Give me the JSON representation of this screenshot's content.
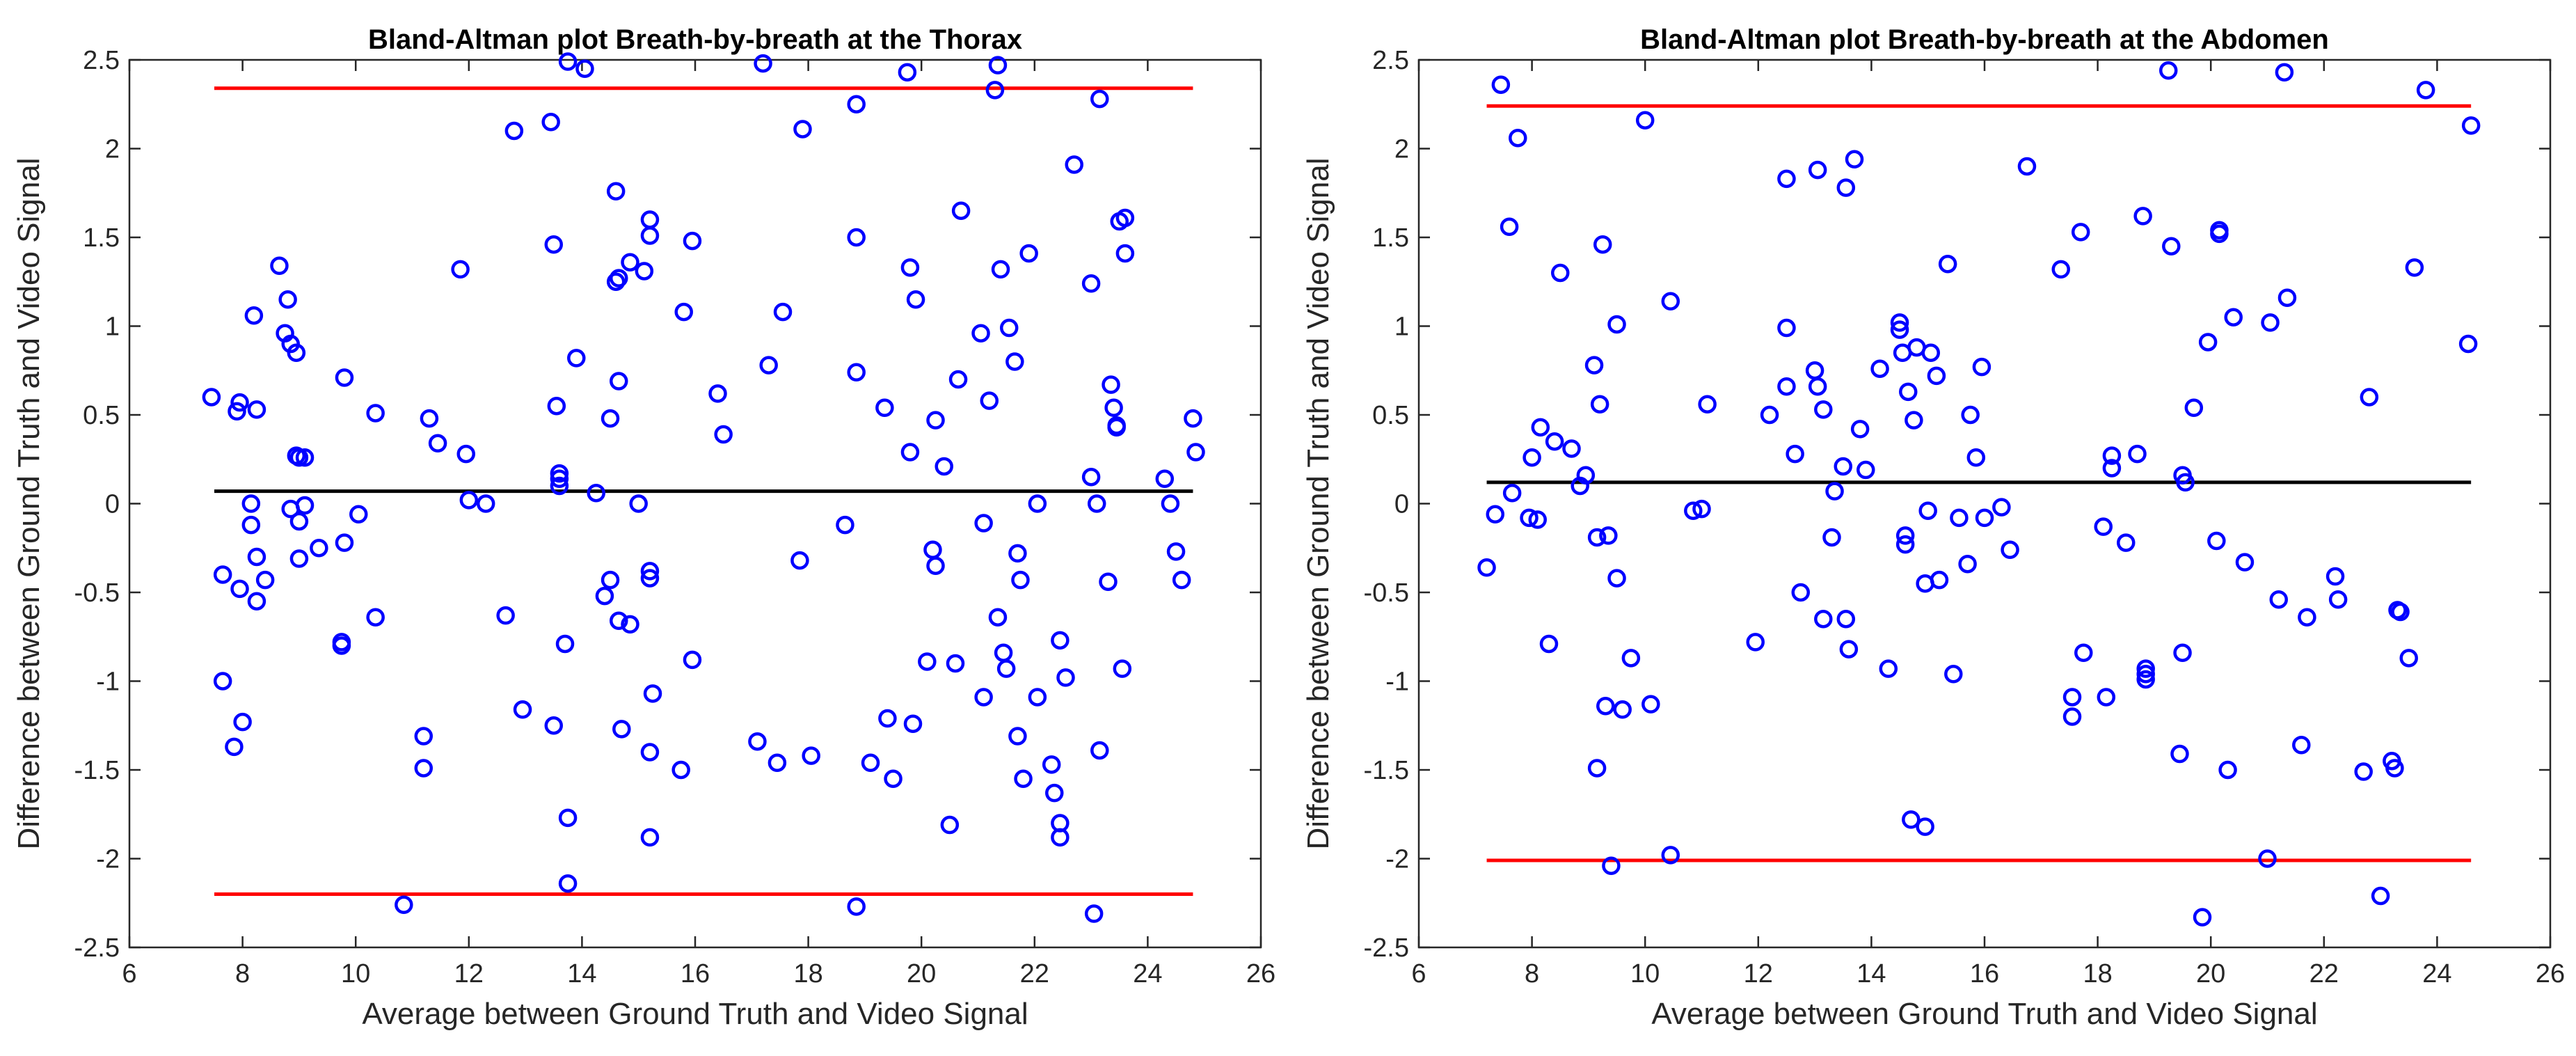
{
  "chart_data": [
    {
      "type": "scatter",
      "title": "Bland-Altman plot Breath-by-breath at the Thorax",
      "xlabel": "Average between Ground Truth and Video Signal",
      "ylabel": "Difference between Ground Truth and Video Signal",
      "xlim": [
        6,
        26
      ],
      "ylim": [
        -2.5,
        2.5
      ],
      "xticks": [
        6,
        8,
        10,
        12,
        14,
        16,
        18,
        20,
        22,
        24,
        26
      ],
      "xtick_labels": [
        "6",
        "8",
        "10",
        "12",
        "14",
        "16",
        "18",
        "20",
        "22",
        "24",
        "26"
      ],
      "yticks": [
        -2.5,
        -2,
        -1.5,
        -1,
        -0.5,
        0,
        0.5,
        1,
        1.5,
        2,
        2.5
      ],
      "ytick_labels": [
        "-2.5",
        "-2",
        "-1.5",
        "-1",
        "-0.5",
        "0",
        "0.5",
        "1",
        "1.5",
        "2",
        "2.5"
      ],
      "marker": "o",
      "marker_color": "#0000ff",
      "lines": [
        {
          "name": "upper-loa",
          "y": 2.34,
          "x": [
            7.5,
            24.8
          ],
          "color": "#ff0000"
        },
        {
          "name": "mean-diff",
          "y": 0.07,
          "x": [
            7.5,
            24.8
          ],
          "color": "#000000"
        },
        {
          "name": "lower-loa",
          "y": -2.2,
          "x": [
            7.5,
            24.8
          ],
          "color": "#ff0000"
        }
      ],
      "points": [
        [
          7.45,
          0.6
        ],
        [
          7.65,
          -0.4
        ],
        [
          7.65,
          -1.0
        ],
        [
          7.85,
          -1.37
        ],
        [
          7.9,
          0.52
        ],
        [
          7.95,
          0.57
        ],
        [
          7.95,
          -0.48
        ],
        [
          8.0,
          -1.23
        ],
        [
          8.15,
          0.0
        ],
        [
          8.15,
          -0.12
        ],
        [
          8.2,
          1.06
        ],
        [
          8.25,
          0.53
        ],
        [
          8.25,
          -0.3
        ],
        [
          8.25,
          -0.55
        ],
        [
          8.4,
          -0.43
        ],
        [
          8.65,
          1.34
        ],
        [
          8.75,
          0.96
        ],
        [
          8.8,
          1.15
        ],
        [
          8.85,
          0.9
        ],
        [
          8.85,
          -0.03
        ],
        [
          8.95,
          0.85
        ],
        [
          8.95,
          0.27
        ],
        [
          9.0,
          0.26
        ],
        [
          9.0,
          -0.1
        ],
        [
          9.0,
          -0.31
        ],
        [
          9.1,
          0.26
        ],
        [
          9.1,
          -0.01
        ],
        [
          9.35,
          -0.25
        ],
        [
          9.75,
          -0.78
        ],
        [
          9.75,
          -0.8
        ],
        [
          9.8,
          0.71
        ],
        [
          9.8,
          -0.22
        ],
        [
          10.05,
          -0.06
        ],
        [
          10.35,
          0.51
        ],
        [
          10.35,
          -0.64
        ],
        [
          10.85,
          -2.26
        ],
        [
          11.2,
          -1.31
        ],
        [
          11.2,
          -1.49
        ],
        [
          11.3,
          0.48
        ],
        [
          11.45,
          0.34
        ],
        [
          11.85,
          1.32
        ],
        [
          11.95,
          0.28
        ],
        [
          12.0,
          0.02
        ],
        [
          12.3,
          0.0
        ],
        [
          12.65,
          -0.63
        ],
        [
          12.8,
          2.1
        ],
        [
          12.95,
          -1.16
        ],
        [
          13.45,
          2.15
        ],
        [
          13.5,
          1.46
        ],
        [
          13.5,
          -1.25
        ],
        [
          13.55,
          0.55
        ],
        [
          13.6,
          0.17
        ],
        [
          13.6,
          0.14
        ],
        [
          13.6,
          0.1
        ],
        [
          13.7,
          -0.79
        ],
        [
          13.75,
          -1.77
        ],
        [
          13.75,
          -2.14
        ],
        [
          13.75,
          2.49
        ],
        [
          13.9,
          0.82
        ],
        [
          14.05,
          2.45
        ],
        [
          14.25,
          0.06
        ],
        [
          14.4,
          -0.52
        ],
        [
          14.5,
          -0.43
        ],
        [
          14.5,
          0.48
        ],
        [
          14.6,
          1.76
        ],
        [
          14.6,
          1.25
        ],
        [
          14.65,
          1.27
        ],
        [
          14.65,
          0.69
        ],
        [
          14.65,
          -0.66
        ],
        [
          14.7,
          -1.27
        ],
        [
          14.85,
          1.36
        ],
        [
          14.85,
          -0.68
        ],
        [
          15.0,
          0.0
        ],
        [
          15.1,
          1.31
        ],
        [
          15.2,
          1.6
        ],
        [
          15.2,
          1.51
        ],
        [
          15.2,
          -0.38
        ],
        [
          15.2,
          -0.42
        ],
        [
          15.2,
          -1.4
        ],
        [
          15.25,
          -1.07
        ],
        [
          15.2,
          -1.88
        ],
        [
          15.75,
          -1.5
        ],
        [
          15.8,
          1.08
        ],
        [
          15.95,
          1.48
        ],
        [
          15.95,
          -0.88
        ],
        [
          16.4,
          0.62
        ],
        [
          16.5,
          0.39
        ],
        [
          17.1,
          -1.34
        ],
        [
          17.2,
          2.48
        ],
        [
          17.3,
          0.78
        ],
        [
          17.45,
          -1.46
        ],
        [
          17.55,
          1.08
        ],
        [
          17.85,
          -0.32
        ],
        [
          17.9,
          2.11
        ],
        [
          18.05,
          -1.42
        ],
        [
          18.65,
          -0.12
        ],
        [
          18.85,
          1.5
        ],
        [
          18.85,
          0.74
        ],
        [
          18.85,
          -2.27
        ],
        [
          18.85,
          2.25
        ],
        [
          19.1,
          -1.46
        ],
        [
          19.35,
          0.54
        ],
        [
          19.4,
          -1.21
        ],
        [
          19.5,
          -1.55
        ],
        [
          19.75,
          2.43
        ],
        [
          19.8,
          1.33
        ],
        [
          19.8,
          0.29
        ],
        [
          19.85,
          -1.24
        ],
        [
          19.9,
          1.15
        ],
        [
          20.1,
          -0.89
        ],
        [
          20.2,
          -0.26
        ],
        [
          20.25,
          0.47
        ],
        [
          20.25,
          -0.35
        ],
        [
          20.4,
          0.21
        ],
        [
          20.5,
          -1.81
        ],
        [
          20.6,
          -0.9
        ],
        [
          20.65,
          0.7
        ],
        [
          20.7,
          1.65
        ],
        [
          21.05,
          0.96
        ],
        [
          21.1,
          -0.11
        ],
        [
          21.1,
          -1.09
        ],
        [
          21.2,
          0.58
        ],
        [
          21.3,
          2.33
        ],
        [
          21.35,
          2.47
        ],
        [
          21.35,
          -0.64
        ],
        [
          21.4,
          1.32
        ],
        [
          21.45,
          -0.84
        ],
        [
          21.5,
          -0.93
        ],
        [
          21.55,
          0.99
        ],
        [
          21.65,
          0.8
        ],
        [
          21.7,
          -0.28
        ],
        [
          21.7,
          -1.31
        ],
        [
          21.75,
          -0.43
        ],
        [
          21.8,
          -1.55
        ],
        [
          21.9,
          1.41
        ],
        [
          22.05,
          0.0
        ],
        [
          22.05,
          -1.09
        ],
        [
          22.3,
          -1.47
        ],
        [
          22.35,
          -1.63
        ],
        [
          22.45,
          -0.77
        ],
        [
          22.45,
          -1.8
        ],
        [
          22.45,
          -1.88
        ],
        [
          22.55,
          -0.98
        ],
        [
          22.7,
          1.91
        ],
        [
          23.0,
          1.24
        ],
        [
          23.0,
          0.15
        ],
        [
          23.05,
          -2.31
        ],
        [
          23.1,
          0.0
        ],
        [
          23.15,
          2.28
        ],
        [
          23.15,
          -1.39
        ],
        [
          23.3,
          -0.44
        ],
        [
          23.35,
          0.67
        ],
        [
          23.4,
          0.54
        ],
        [
          23.45,
          0.43
        ],
        [
          23.45,
          0.44
        ],
        [
          23.5,
          1.59
        ],
        [
          23.55,
          -0.93
        ],
        [
          23.6,
          1.61
        ],
        [
          23.6,
          1.41
        ],
        [
          24.3,
          0.14
        ],
        [
          24.4,
          0.0
        ],
        [
          24.5,
          -0.27
        ],
        [
          24.6,
          -0.43
        ],
        [
          24.8,
          0.48
        ],
        [
          24.85,
          0.29
        ]
      ]
    },
    {
      "type": "scatter",
      "title": "Bland-Altman plot Breath-by-breath at the Abdomen",
      "xlabel": "Average between Ground Truth and Video Signal",
      "ylabel": "Difference between Ground Truth and Video Signal",
      "xlim": [
        6,
        26
      ],
      "ylim": [
        -2.5,
        2.5
      ],
      "xticks": [
        6,
        8,
        10,
        12,
        14,
        16,
        18,
        20,
        22,
        24,
        26
      ],
      "xtick_labels": [
        "6",
        "8",
        "10",
        "12",
        "14",
        "16",
        "18",
        "20",
        "22",
        "24",
        "26"
      ],
      "yticks": [
        -2.5,
        -2,
        -1.5,
        -1,
        -0.5,
        0,
        0.5,
        1,
        1.5,
        2,
        2.5
      ],
      "ytick_labels": [
        "-2.5",
        "-2",
        "-1.5",
        "-1",
        "-0.5",
        "0",
        "0.5",
        "1",
        "1.5",
        "2",
        "2.5"
      ],
      "marker": "o",
      "marker_color": "#0000ff",
      "lines": [
        {
          "name": "upper-loa",
          "y": 2.24,
          "x": [
            7.2,
            24.6
          ],
          "color": "#ff0000"
        },
        {
          "name": "mean-diff",
          "y": 0.12,
          "x": [
            7.2,
            24.6
          ],
          "color": "#000000"
        },
        {
          "name": "lower-loa",
          "y": -2.01,
          "x": [
            7.2,
            24.6
          ],
          "color": "#ff0000"
        }
      ],
      "points": [
        [
          7.2,
          -0.36
        ],
        [
          7.35,
          -0.06
        ],
        [
          7.45,
          2.36
        ],
        [
          7.6,
          1.56
        ],
        [
          7.65,
          0.06
        ],
        [
          7.75,
          2.06
        ],
        [
          7.95,
          -0.08
        ],
        [
          8.0,
          0.26
        ],
        [
          8.1,
          -0.09
        ],
        [
          8.15,
          0.43
        ],
        [
          8.3,
          -0.79
        ],
        [
          8.4,
          0.35
        ],
        [
          8.5,
          1.3
        ],
        [
          8.7,
          0.31
        ],
        [
          8.85,
          0.1
        ],
        [
          8.95,
          0.16
        ],
        [
          9.1,
          0.78
        ],
        [
          9.15,
          -0.19
        ],
        [
          9.2,
          0.56
        ],
        [
          9.15,
          -1.49
        ],
        [
          9.25,
          1.46
        ],
        [
          9.3,
          -1.14
        ],
        [
          9.35,
          -0.18
        ],
        [
          9.4,
          -2.04
        ],
        [
          9.5,
          -0.42
        ],
        [
          9.5,
          1.01
        ],
        [
          9.6,
          -1.16
        ],
        [
          9.75,
          -0.87
        ],
        [
          10.0,
          2.16
        ],
        [
          10.1,
          -1.13
        ],
        [
          10.45,
          1.14
        ],
        [
          10.45,
          -1.98
        ],
        [
          10.85,
          -0.04
        ],
        [
          11.0,
          -0.03
        ],
        [
          11.1,
          0.56
        ],
        [
          11.95,
          -0.78
        ],
        [
          12.2,
          0.5
        ],
        [
          12.5,
          1.83
        ],
        [
          12.5,
          0.99
        ],
        [
          12.5,
          0.66
        ],
        [
          12.65,
          0.28
        ],
        [
          12.75,
          -0.5
        ],
        [
          13.0,
          0.75
        ],
        [
          13.05,
          1.88
        ],
        [
          13.05,
          0.66
        ],
        [
          13.15,
          0.53
        ],
        [
          13.15,
          -0.65
        ],
        [
          13.3,
          -0.19
        ],
        [
          13.35,
          0.07
        ],
        [
          13.5,
          0.21
        ],
        [
          13.55,
          -0.65
        ],
        [
          13.55,
          1.78
        ],
        [
          13.6,
          -0.82
        ],
        [
          13.7,
          1.94
        ],
        [
          13.8,
          0.42
        ],
        [
          13.9,
          0.19
        ],
        [
          14.15,
          0.76
        ],
        [
          14.3,
          -0.93
        ],
        [
          14.5,
          1.02
        ],
        [
          14.5,
          0.98
        ],
        [
          14.55,
          0.85
        ],
        [
          14.6,
          -0.18
        ],
        [
          14.6,
          -0.23
        ],
        [
          14.65,
          0.63
        ],
        [
          14.7,
          -1.78
        ],
        [
          14.75,
          0.47
        ],
        [
          14.8,
          0.88
        ],
        [
          14.95,
          -1.82
        ],
        [
          14.95,
          -0.45
        ],
        [
          15.0,
          -0.04
        ],
        [
          15.05,
          0.85
        ],
        [
          15.15,
          0.72
        ],
        [
          15.2,
          -0.43
        ],
        [
          15.35,
          1.35
        ],
        [
          15.45,
          -0.96
        ],
        [
          15.55,
          -0.08
        ],
        [
          15.7,
          -0.34
        ],
        [
          15.75,
          0.5
        ],
        [
          15.85,
          0.26
        ],
        [
          15.95,
          0.77
        ],
        [
          16.0,
          -0.08
        ],
        [
          16.3,
          -0.02
        ],
        [
          16.45,
          -0.26
        ],
        [
          16.75,
          1.9
        ],
        [
          17.35,
          1.32
        ],
        [
          17.55,
          -1.09
        ],
        [
          17.55,
          -1.2
        ],
        [
          17.7,
          1.53
        ],
        [
          17.75,
          -0.84
        ],
        [
          18.1,
          -0.13
        ],
        [
          18.15,
          -1.09
        ],
        [
          18.25,
          0.27
        ],
        [
          18.25,
          0.2
        ],
        [
          18.5,
          -0.22
        ],
        [
          18.7,
          0.28
        ],
        [
          18.8,
          1.62
        ],
        [
          18.85,
          -0.93
        ],
        [
          18.85,
          -0.96
        ],
        [
          18.85,
          -0.99
        ],
        [
          19.25,
          2.44
        ],
        [
          19.3,
          1.45
        ],
        [
          19.45,
          -1.41
        ],
        [
          19.5,
          -0.84
        ],
        [
          19.5,
          0.16
        ],
        [
          19.55,
          0.12
        ],
        [
          19.7,
          0.54
        ],
        [
          19.85,
          -2.33
        ],
        [
          19.95,
          0.91
        ],
        [
          20.1,
          -0.21
        ],
        [
          20.15,
          1.54
        ],
        [
          20.15,
          1.52
        ],
        [
          20.3,
          -1.5
        ],
        [
          20.4,
          1.05
        ],
        [
          20.6,
          -0.33
        ],
        [
          21.0,
          -2.0
        ],
        [
          21.05,
          1.02
        ],
        [
          21.2,
          -0.54
        ],
        [
          21.3,
          2.43
        ],
        [
          21.35,
          1.16
        ],
        [
          21.6,
          -1.36
        ],
        [
          21.7,
          -0.64
        ],
        [
          22.2,
          -0.41
        ],
        [
          22.25,
          -0.54
        ],
        [
          22.7,
          -1.51
        ],
        [
          22.8,
          0.6
        ],
        [
          23.0,
          -2.21
        ],
        [
          23.2,
          -1.45
        ],
        [
          23.25,
          -1.49
        ],
        [
          23.3,
          -0.6
        ],
        [
          23.35,
          -0.61
        ],
        [
          23.5,
          -0.87
        ],
        [
          23.6,
          1.33
        ],
        [
          23.8,
          2.33
        ],
        [
          24.55,
          0.9
        ],
        [
          24.6,
          2.13
        ]
      ]
    }
  ]
}
